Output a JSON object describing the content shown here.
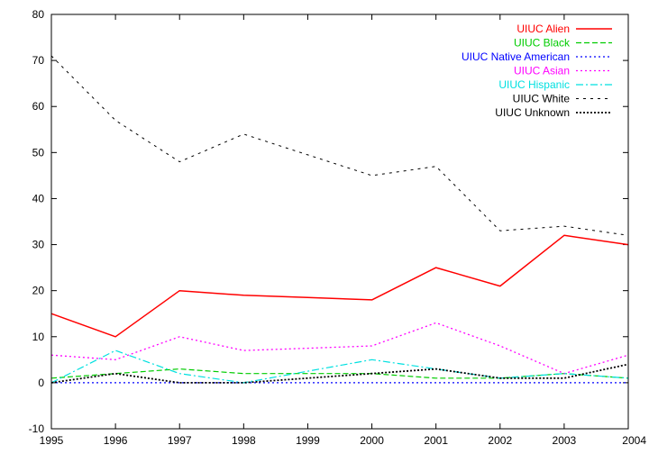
{
  "chart_data": {
    "type": "line",
    "x": [
      1995,
      1996,
      1997,
      1998,
      1999,
      2000,
      2001,
      2002,
      2003,
      2004
    ],
    "xlim": [
      1995,
      2004
    ],
    "ylim": [
      -10,
      80
    ],
    "xticks": [
      "1995",
      "1996",
      "1997",
      "1998",
      "1999",
      "2000",
      "2001",
      "2002",
      "2003",
      "2004"
    ],
    "yticks": [
      "-10",
      "0",
      "10",
      "20",
      "30",
      "40",
      "50",
      "60",
      "70",
      "80"
    ],
    "title": "",
    "xlabel": "",
    "ylabel": "",
    "grid": false,
    "legend_position": "top-right",
    "series": [
      {
        "name": "UIUC Alien",
        "color": "#ff0000",
        "dash": "solid",
        "values": [
          15,
          10,
          20,
          19,
          18.5,
          18,
          25,
          21,
          32,
          30
        ]
      },
      {
        "name": "UIUC Black",
        "color": "#00cc00",
        "dash": "dashed",
        "values": [
          1,
          2,
          3,
          2,
          2,
          2,
          1,
          1,
          2,
          1
        ]
      },
      {
        "name": "UIUC Native American",
        "color": "#0000ff",
        "dash": "dotted",
        "values": [
          0,
          0,
          0,
          0,
          0,
          0,
          0,
          0,
          0,
          0
        ]
      },
      {
        "name": "UIUC Asian",
        "color": "#ff00ff",
        "dash": "dotted",
        "values": [
          6,
          5,
          10,
          7,
          7.5,
          8,
          13,
          8,
          2,
          6
        ]
      },
      {
        "name": "UIUC Hispanic",
        "color": "#00e0e0",
        "dash": "dashdot",
        "values": [
          0,
          7,
          2,
          0,
          2.5,
          5,
          3,
          1,
          2,
          1
        ]
      },
      {
        "name": "UIUC White",
        "color": "#000000",
        "dash": "sparse-dash",
        "values": [
          71,
          57,
          48,
          54,
          49.5,
          45,
          47,
          33,
          34,
          32
        ]
      },
      {
        "name": "UIUC Unknown",
        "color": "#000000",
        "dash": "dense-dot",
        "values": [
          0,
          2,
          0,
          0,
          1,
          2,
          3,
          1,
          1,
          4
        ]
      }
    ]
  }
}
